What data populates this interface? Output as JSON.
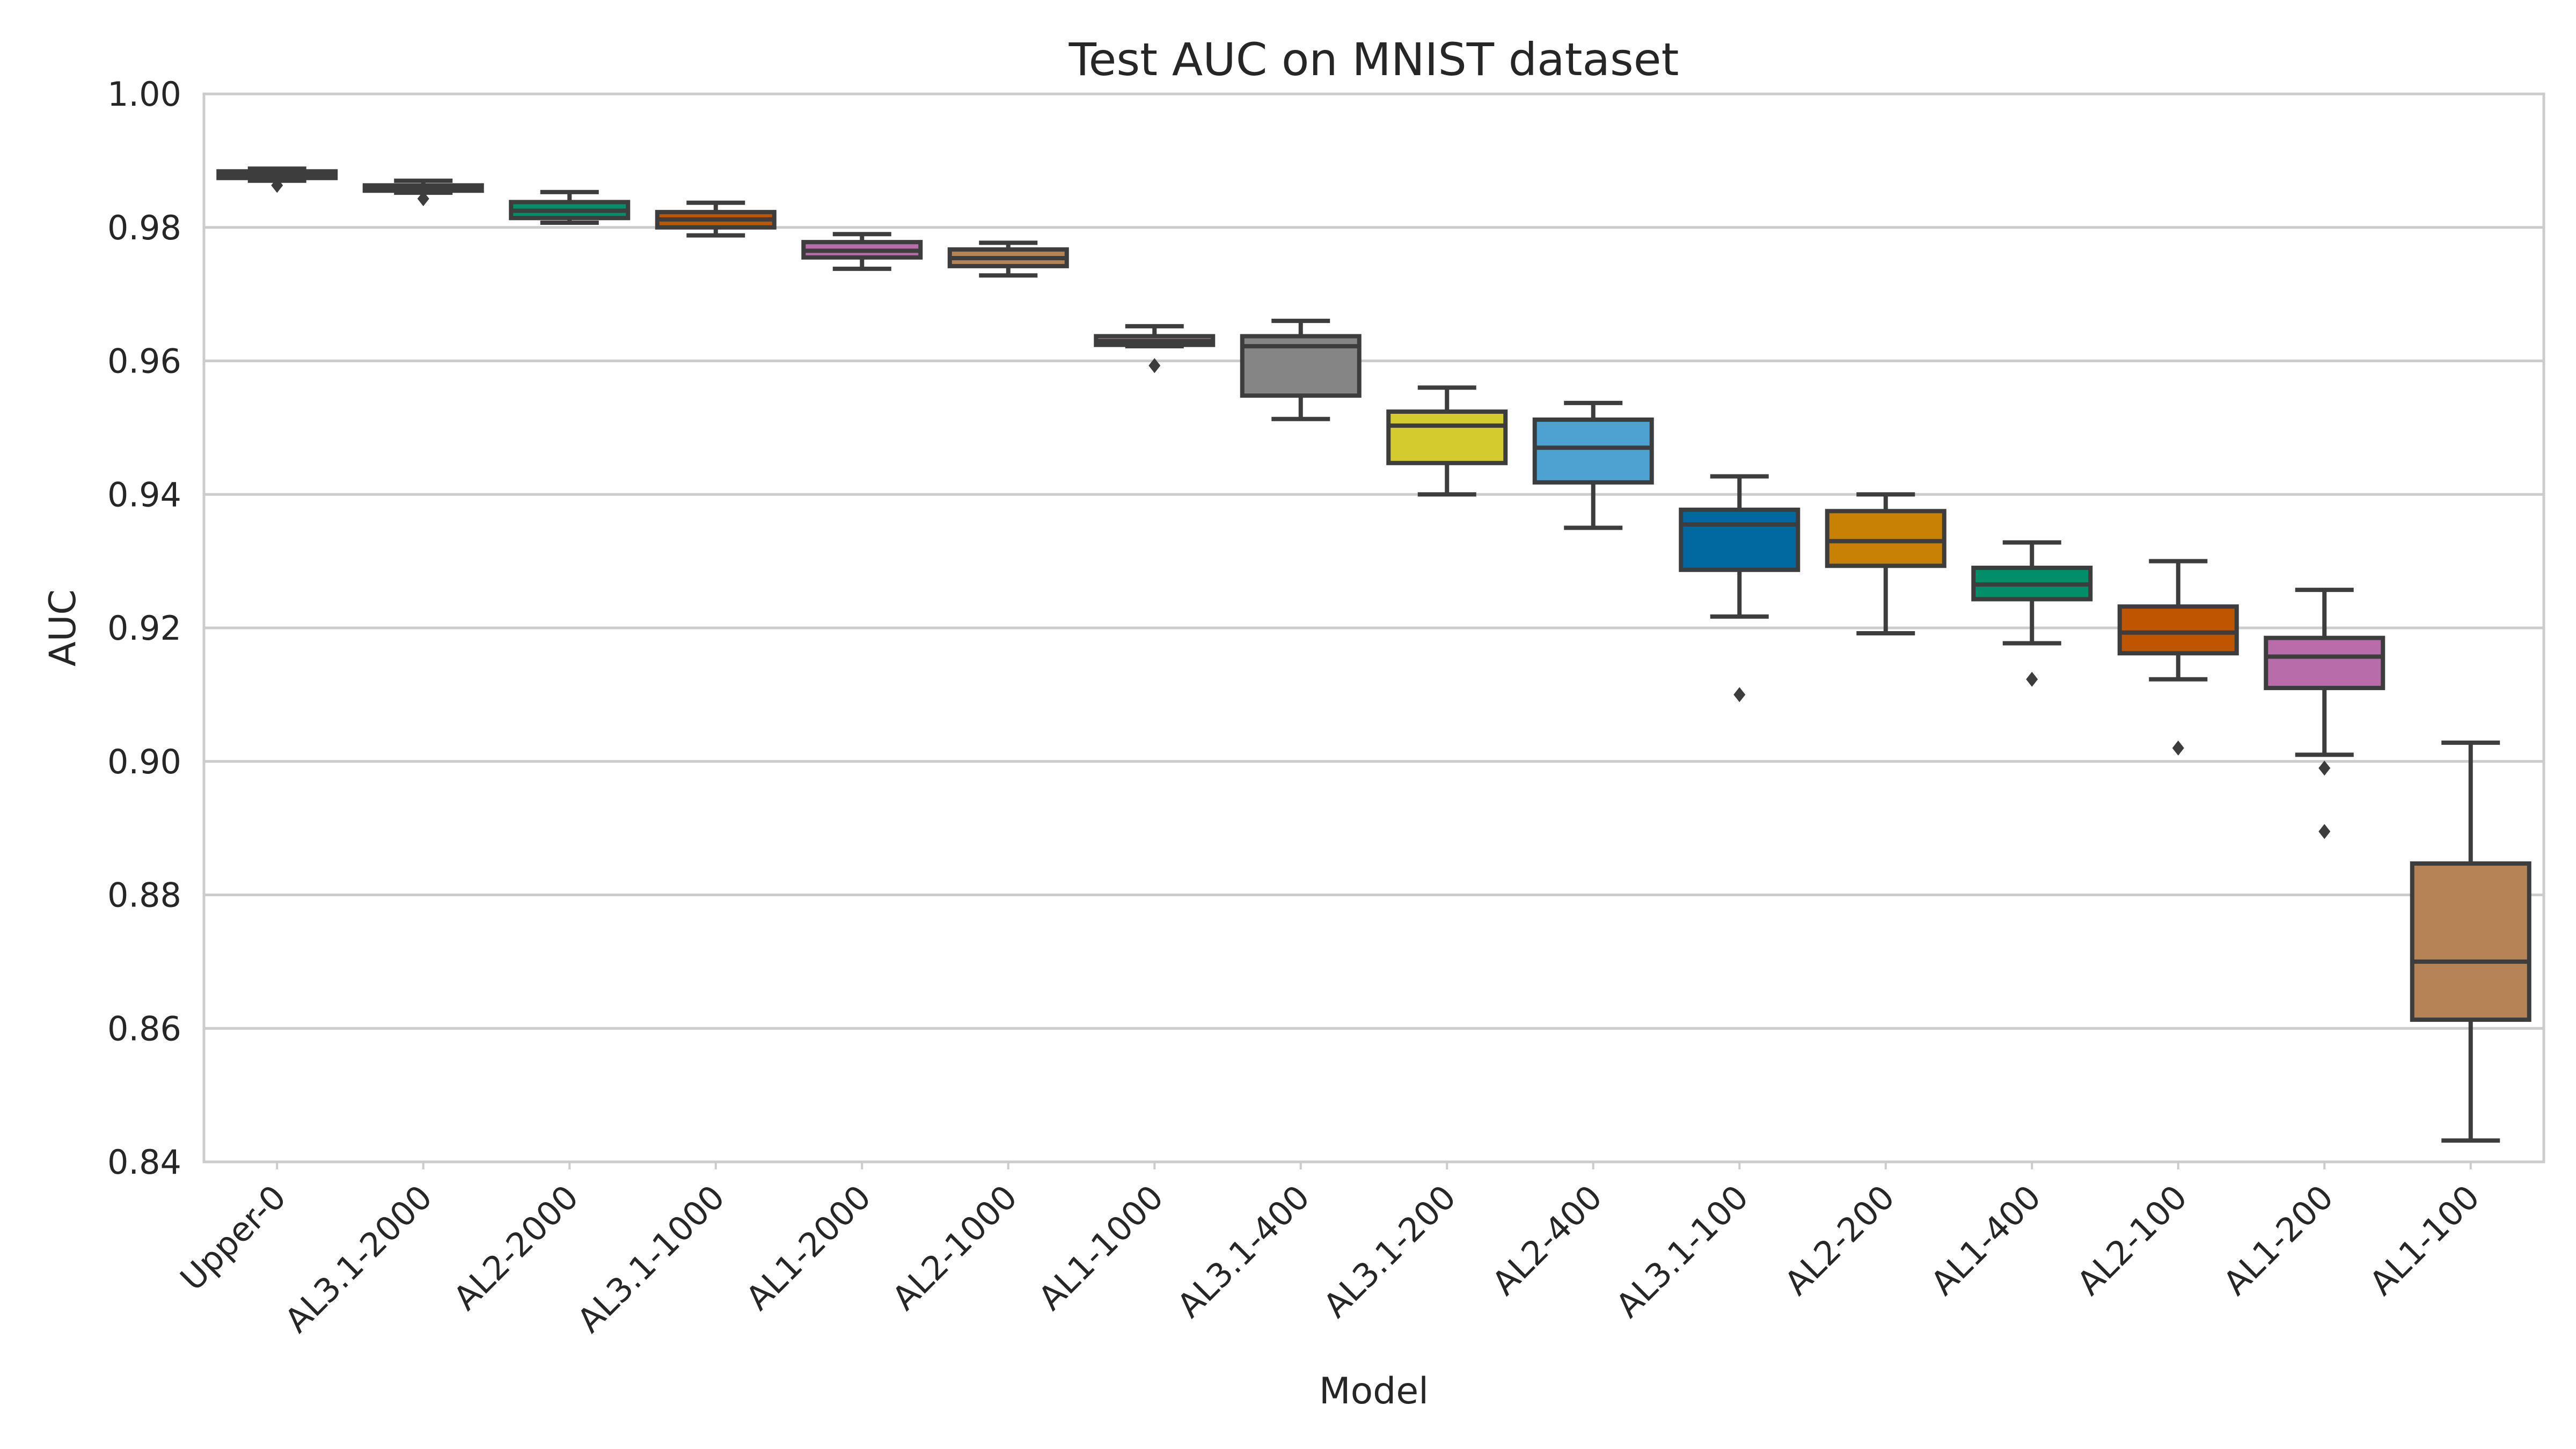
{
  "chart_data": {
    "type": "box",
    "title": "Test AUC on MNIST dataset",
    "xlabel": "Model",
    "ylabel": "AUC",
    "ylim": [
      0.84,
      1.0
    ],
    "yticks": [
      "0.84",
      "0.86",
      "0.88",
      "0.90",
      "0.92",
      "0.94",
      "0.96",
      "0.98",
      "1.00"
    ],
    "grid": true,
    "categories": [
      "Upper-0",
      "AL3.1-2000",
      "AL2-2000",
      "AL3.1-1000",
      "AL1-2000",
      "AL2-1000",
      "AL1-1000",
      "AL3.1-400",
      "AL3.1-200",
      "AL2-400",
      "AL3.1-100",
      "AL2-200",
      "AL1-400",
      "AL2-100",
      "AL1-200",
      "AL1-100"
    ],
    "colors": [
      "#0173b2",
      "#de8f05",
      "#029e73",
      "#d55e00",
      "#cc78bc",
      "#ca9161",
      "#fbafe4",
      "#949494",
      "#ece133",
      "#56b4e9",
      "#0173b2",
      "#de8f05",
      "#029e73",
      "#d55e00",
      "#cc78bc",
      "#ca9161"
    ],
    "boxes": [
      {
        "min": 0.987,
        "q1": 0.9874,
        "median": 0.9879,
        "q3": 0.9884,
        "max": 0.9888,
        "outliers": [
          0.9863
        ]
      },
      {
        "min": 0.9852,
        "q1": 0.9855,
        "median": 0.986,
        "q3": 0.9863,
        "max": 0.987,
        "outliers": [
          0.9843
        ]
      },
      {
        "min": 0.9807,
        "q1": 0.9814,
        "median": 0.9825,
        "q3": 0.9838,
        "max": 0.9853,
        "outliers": []
      },
      {
        "min": 0.9788,
        "q1": 0.98,
        "median": 0.9812,
        "q3": 0.9823,
        "max": 0.9837,
        "outliers": []
      },
      {
        "min": 0.9738,
        "q1": 0.9755,
        "median": 0.9765,
        "q3": 0.9778,
        "max": 0.979,
        "outliers": []
      },
      {
        "min": 0.9728,
        "q1": 0.9742,
        "median": 0.9754,
        "q3": 0.9767,
        "max": 0.9777,
        "outliers": []
      },
      {
        "min": 0.9622,
        "q1": 0.9624,
        "median": 0.963,
        "q3": 0.9637,
        "max": 0.9652,
        "outliers": [
          0.9593
        ]
      },
      {
        "min": 0.9513,
        "q1": 0.9548,
        "median": 0.9622,
        "q3": 0.9637,
        "max": 0.966,
        "outliers": []
      },
      {
        "min": 0.94,
        "q1": 0.9447,
        "median": 0.9503,
        "q3": 0.9524,
        "max": 0.956,
        "outliers": []
      },
      {
        "min": 0.935,
        "q1": 0.9418,
        "median": 0.947,
        "q3": 0.9512,
        "max": 0.9537,
        "outliers": []
      },
      {
        "min": 0.9217,
        "q1": 0.9287,
        "median": 0.9355,
        "q3": 0.9377,
        "max": 0.9427,
        "outliers": [
          0.91
        ]
      },
      {
        "min": 0.9192,
        "q1": 0.9293,
        "median": 0.933,
        "q3": 0.9375,
        "max": 0.94,
        "outliers": []
      },
      {
        "min": 0.9177,
        "q1": 0.9243,
        "median": 0.9265,
        "q3": 0.929,
        "max": 0.9328,
        "outliers": [
          0.9123
        ]
      },
      {
        "min": 0.9123,
        "q1": 0.9162,
        "median": 0.9193,
        "q3": 0.9232,
        "max": 0.93,
        "outliers": [
          0.902
        ]
      },
      {
        "min": 0.901,
        "q1": 0.911,
        "median": 0.9157,
        "q3": 0.9185,
        "max": 0.9257,
        "outliers": [
          0.899,
          0.8895
        ]
      },
      {
        "min": 0.8432,
        "q1": 0.8613,
        "median": 0.87,
        "q3": 0.8847,
        "max": 0.9028,
        "outliers": []
      }
    ]
  }
}
